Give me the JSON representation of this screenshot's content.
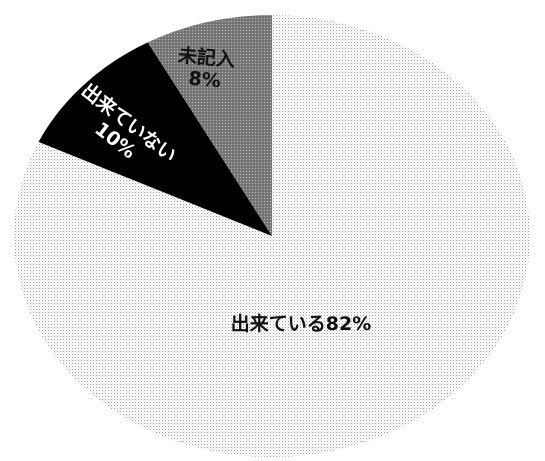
{
  "chart_data": {
    "type": "pie",
    "title": "",
    "slices": [
      {
        "label": "出来ている",
        "value": 82,
        "value_text": "82%",
        "display": "出来ている82%",
        "color": "#f2f2f2",
        "pattern": "light-dots"
      },
      {
        "label": "出来ていない",
        "value": 10,
        "value_text": "10%",
        "display": "出来ていない\n10%",
        "color": "#000000",
        "pattern": "solid"
      },
      {
        "label": "未記入",
        "value": 8,
        "value_text": "8%",
        "display": "未記入\n8%",
        "color": "#8c8c8c",
        "pattern": "dark-dots"
      }
    ],
    "legend": "none",
    "labels_inside": true
  }
}
